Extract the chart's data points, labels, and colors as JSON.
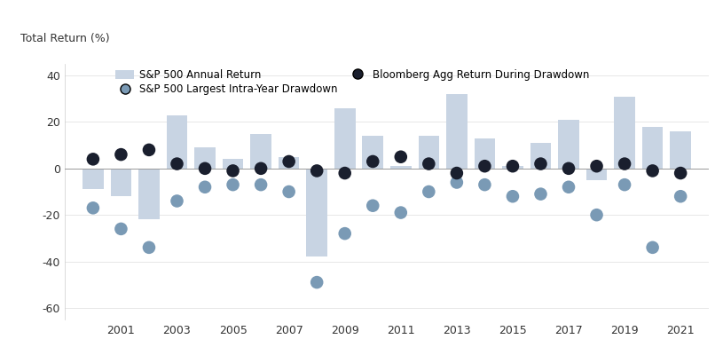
{
  "years": [
    2000,
    2001,
    2002,
    2003,
    2004,
    2005,
    2006,
    2007,
    2008,
    2009,
    2010,
    2011,
    2012,
    2013,
    2014,
    2015,
    2016,
    2017,
    2018,
    2019,
    2020,
    2021
  ],
  "sp500_annual": [
    -9,
    -12,
    -22,
    23,
    9,
    4,
    15,
    5,
    -38,
    26,
    14,
    1,
    14,
    32,
    13,
    1,
    11,
    21,
    -5,
    31,
    18,
    16
  ],
  "sp500_drawdown": [
    -17,
    -26,
    -34,
    -14,
    -8,
    -7,
    -7,
    -10,
    -49,
    -28,
    -16,
    -19,
    -10,
    -6,
    -7,
    -12,
    -11,
    -8,
    -20,
    -7,
    -34,
    -12
  ],
  "bloomberg_agg": [
    4,
    6,
    8,
    2,
    0,
    -1,
    0,
    3,
    -1,
    -2,
    3,
    5,
    2,
    -2,
    1,
    1,
    2,
    0,
    1,
    2,
    -1,
    -2
  ],
  "bar_color": "#c8d4e3",
  "drawdown_dot_color": "#7a9ab5",
  "agg_dot_color": "#1a1f2e",
  "ylabel": "Total Return (%)",
  "ylim": [
    -65,
    45
  ],
  "yticks": [
    -60,
    -40,
    -20,
    0,
    20,
    40
  ],
  "xtick_labels": [
    2001,
    2003,
    2005,
    2007,
    2009,
    2011,
    2013,
    2015,
    2017,
    2019,
    2021
  ],
  "legend_labels": [
    "S&P 500 Annual Return",
    "S&P 500 Largest Intra-Year Drawdown",
    "Bloomberg Agg Return During Drawdown"
  ],
  "background_color": "#ffffff"
}
